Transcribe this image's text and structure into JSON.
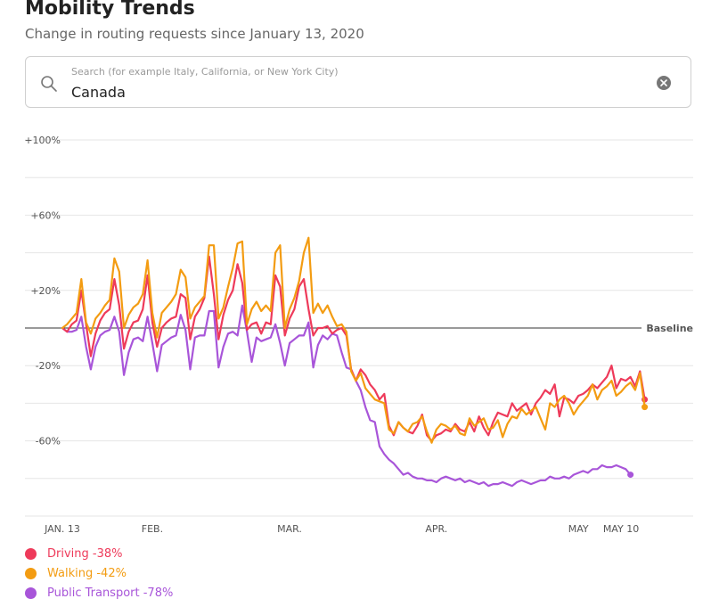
{
  "header": {
    "title": "Mobility Trends",
    "subtitle": "Change in routing requests since January 13, 2020"
  },
  "search": {
    "placeholder": "Search (for example Italy, California, or New York City)",
    "value": "Canada",
    "search_icon": "search-icon",
    "clear_icon": "clear-icon"
  },
  "colors": {
    "driving": "#ee3a5a",
    "walking": "#f39c12",
    "transit": "#a855d9",
    "grid": "#e6e6e6",
    "baseline": "#333333"
  },
  "chart_data": {
    "type": "line",
    "title": "Mobility Trends",
    "subtitle": "Change in routing requests since January 13, 2020",
    "ylim": [
      -100,
      100
    ],
    "y_ticks": [
      100,
      60,
      20,
      -20,
      -60
    ],
    "y_tick_labels": [
      "+100%",
      "+60%",
      "+20%",
      "-20%",
      "-60%"
    ],
    "x_range": [
      0,
      118
    ],
    "x_ticks": [
      {
        "day": 0,
        "label": "JAN. 13"
      },
      {
        "day": 19,
        "label": "FEB."
      },
      {
        "day": 48,
        "label": "MAR."
      },
      {
        "day": 79,
        "label": "APR."
      },
      {
        "day": 109,
        "label": "MAY"
      },
      {
        "day": 118,
        "label": "MAY 10"
      }
    ],
    "baseline_label": "Baseline",
    "series": [
      {
        "name": "Driving",
        "key": "driving",
        "latest_label": "-38%",
        "values": [
          0,
          -2,
          2,
          4,
          20,
          2,
          -15,
          -3,
          4,
          8,
          10,
          26,
          12,
          -11,
          -2,
          3,
          4,
          10,
          28,
          3,
          -10,
          0,
          3,
          5,
          6,
          18,
          16,
          -6,
          6,
          10,
          16,
          38,
          18,
          -6,
          7,
          15,
          20,
          34,
          24,
          -1,
          2,
          3,
          -3,
          3,
          2,
          28,
          22,
          -4,
          5,
          10,
          22,
          26,
          10,
          -4,
          0,
          0,
          1,
          -3,
          -1,
          0,
          -4,
          -22,
          -28,
          -22,
          -25,
          -30,
          -33,
          -38,
          -35,
          -52,
          -57,
          -50,
          -53,
          -55,
          -56,
          -52,
          -46,
          -57,
          -60,
          -57,
          -56,
          -54,
          -55,
          -51,
          -54,
          -55,
          -50,
          -55,
          -47,
          -53,
          -57,
          -50,
          -45,
          -46,
          -47,
          -40,
          -44,
          -42,
          -40,
          -46,
          -40,
          -37,
          -33,
          -35,
          -30,
          -47,
          -37,
          -38,
          -40,
          -36,
          -35,
          -33,
          -30,
          -32,
          -29,
          -26,
          -20,
          -32,
          -27,
          -28,
          -26,
          -31,
          -23,
          -38
        ]
      },
      {
        "name": "Walking",
        "key": "walking",
        "latest_label": "-42%",
        "values": [
          0,
          2,
          5,
          8,
          26,
          3,
          -3,
          5,
          8,
          12,
          15,
          37,
          30,
          0,
          7,
          11,
          13,
          18,
          36,
          8,
          -5,
          8,
          11,
          14,
          18,
          31,
          27,
          5,
          11,
          14,
          17,
          44,
          44,
          5,
          11,
          22,
          32,
          45,
          46,
          2,
          10,
          14,
          9,
          12,
          9,
          40,
          44,
          0,
          10,
          16,
          25,
          40,
          48,
          8,
          13,
          8,
          12,
          6,
          1,
          2,
          -2,
          -23,
          -28,
          -24,
          -32,
          -35,
          -38,
          -39,
          -40,
          -54,
          -56,
          -50,
          -53,
          -55,
          -51,
          -50,
          -47,
          -55,
          -61,
          -54,
          -51,
          -52,
          -54,
          -52,
          -56,
          -57,
          -48,
          -52,
          -50,
          -48,
          -54,
          -53,
          -49,
          -58,
          -51,
          -47,
          -48,
          -43,
          -46,
          -44,
          -42,
          -48,
          -54,
          -40,
          -42,
          -38,
          -36,
          -40,
          -46,
          -42,
          -39,
          -36,
          -30,
          -38,
          -33,
          -31,
          -28,
          -36,
          -34,
          -31,
          -29,
          -33,
          -24,
          -42
        ]
      },
      {
        "name": "Public Transport",
        "key": "transit",
        "latest_label": "-78%",
        "values": [
          0,
          -2,
          -2,
          -1,
          6,
          -10,
          -22,
          -10,
          -4,
          -2,
          -1,
          6,
          -2,
          -25,
          -13,
          -6,
          -5,
          -7,
          6,
          -8,
          -23,
          -9,
          -7,
          -5,
          -4,
          7,
          -1,
          -22,
          -5,
          -4,
          -4,
          9,
          9,
          -21,
          -10,
          -3,
          -2,
          -4,
          12,
          -2,
          -18,
          -5,
          -7,
          -6,
          -5,
          2,
          -8,
          -20,
          -8,
          -6,
          -4,
          -4,
          3,
          -21,
          -9,
          -4,
          -6,
          -3,
          -4,
          -13,
          -21,
          -22,
          -28,
          -33,
          -42,
          -49,
          -50,
          -63,
          -67,
          -70,
          -72,
          -75,
          -78,
          -77,
          -79,
          -80,
          -80,
          -81,
          -81,
          -82,
          -80,
          -79,
          -80,
          -81,
          -80,
          -82,
          -81,
          -82,
          -83,
          -82,
          -84,
          -83,
          -83,
          -82,
          -83,
          -84,
          -82,
          -81,
          -82,
          -83,
          -82,
          -81,
          -81,
          -79,
          -80,
          -80,
          -79,
          -80,
          -78,
          -77,
          -76,
          -77,
          -75,
          -75,
          -73,
          -74,
          -74,
          -73,
          -74,
          -75,
          -78
        ]
      }
    ],
    "legend": [
      {
        "key": "driving",
        "label": "Driving -38%"
      },
      {
        "key": "walking",
        "label": "Walking -42%"
      },
      {
        "key": "transit",
        "label": "Public Transport -78%"
      }
    ]
  }
}
